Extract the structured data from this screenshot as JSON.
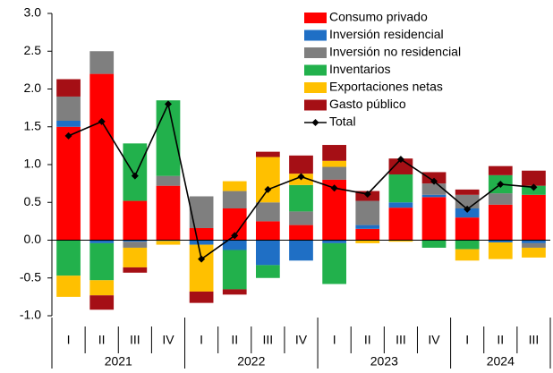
{
  "chart_data": {
    "type": "stacked_bar_line",
    "groups": [
      {
        "label": "2021",
        "categories": [
          "I",
          "II",
          "III",
          "IV"
        ]
      },
      {
        "label": "2022",
        "categories": [
          "I",
          "II",
          "III",
          "IV"
        ]
      },
      {
        "label": "2023",
        "categories": [
          "I",
          "II",
          "III",
          "IV"
        ]
      },
      {
        "label": "2024",
        "categories": [
          "I",
          "II",
          "III"
        ]
      }
    ],
    "series": [
      {
        "name": "Consumo privado",
        "color": "#ff0000",
        "values": [
          1.5,
          2.2,
          0.52,
          0.72,
          0.16,
          0.42,
          0.25,
          0.2,
          0.8,
          0.15,
          0.43,
          0.57,
          0.3,
          0.47,
          0.6
        ]
      },
      {
        "name": "Inversión residencial",
        "color": "#1f6fc5",
        "values": [
          0.08,
          -0.04,
          -0.02,
          -0.01,
          -0.06,
          -0.13,
          -0.33,
          -0.27,
          -0.04,
          0.05,
          0.07,
          0.03,
          0.12,
          -0.03,
          -0.04
        ]
      },
      {
        "name": "Inversión no residencial",
        "color": "#7f7f7f",
        "values": [
          0.32,
          0.3,
          -0.08,
          0.13,
          0.42,
          0.23,
          0.25,
          0.18,
          0.17,
          0.32,
          0,
          0.15,
          0.18,
          0.15,
          -0.06
        ]
      },
      {
        "name": "Inventarios",
        "color": "#22b14c",
        "values": [
          -0.47,
          -0.49,
          0.76,
          1.0,
          0,
          -0.52,
          -0.17,
          0.35,
          -0.54,
          0,
          0.37,
          -0.1,
          -0.12,
          0.24,
          0.12
        ]
      },
      {
        "name": "Exportaciones netas",
        "color": "#ffc000",
        "values": [
          -0.28,
          -0.2,
          -0.26,
          -0.05,
          -0.62,
          0.13,
          0.6,
          0.15,
          0.08,
          -0.04,
          -0.02,
          0,
          -0.15,
          -0.22,
          -0.13
        ]
      },
      {
        "name": "Gasto público",
        "color": "#a50f15",
        "values": [
          0.23,
          -0.19,
          -0.07,
          0,
          -0.15,
          -0.07,
          0.07,
          0.24,
          0.21,
          0.13,
          0.21,
          0.15,
          0.07,
          0.12,
          0.2
        ]
      }
    ],
    "line_series": {
      "name": "Total",
      "color": "#000000",
      "values": [
        1.38,
        1.57,
        0.85,
        1.8,
        -0.25,
        0.06,
        0.67,
        0.84,
        0.69,
        0.61,
        1.07,
        0.78,
        0.41,
        0.74,
        0.7
      ]
    },
    "ylim": [
      -1,
      3
    ],
    "yticks": [
      {
        "value": -1,
        "label": "-1.0"
      },
      {
        "value": -0.5,
        "label": "-0.5"
      },
      {
        "value": 0,
        "label": "0.0"
      },
      {
        "value": 0.5,
        "label": "0.5"
      },
      {
        "value": 1,
        "label": "1.0"
      },
      {
        "value": 1.5,
        "label": "1.5"
      },
      {
        "value": 2,
        "label": "2.0"
      },
      {
        "value": 2.5,
        "label": "2.5"
      },
      {
        "value": 3,
        "label": "3.0"
      }
    ]
  }
}
